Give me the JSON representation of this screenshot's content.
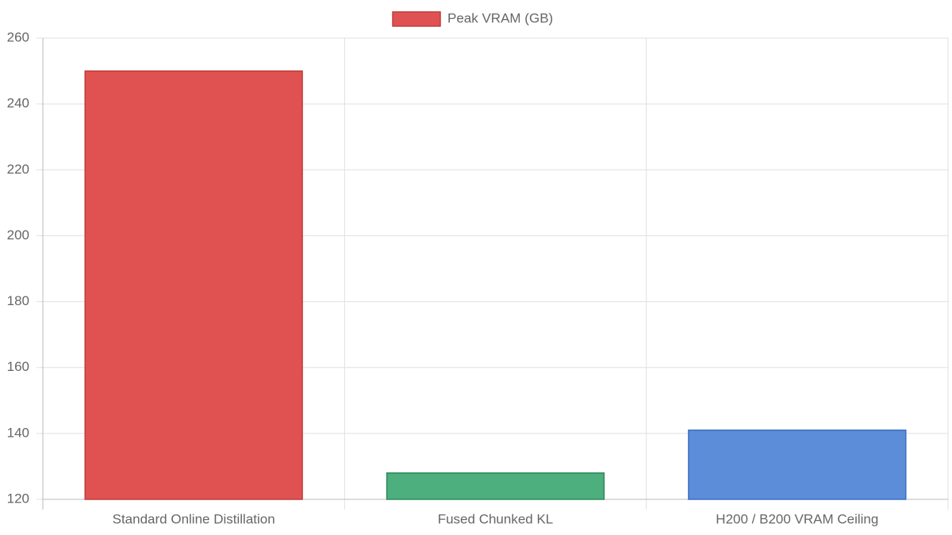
{
  "chart_data": {
    "type": "bar",
    "categories": [
      "Standard Online Distillation",
      "Fused Chunked KL",
      "H200 / B200 VRAM Ceiling"
    ],
    "series": [
      {
        "name": "Peak VRAM (GB)",
        "values": [
          250,
          128,
          141
        ],
        "colors": [
          "#e05252",
          "#4caf7d",
          "#5b8dd9"
        ],
        "border_colors": [
          "#c23b3b",
          "#2e8a5a",
          "#3a6fc2"
        ]
      }
    ],
    "ylim": [
      120,
      260
    ],
    "yticks": [
      120,
      140,
      160,
      180,
      200,
      220,
      240,
      260
    ],
    "grid": true,
    "legend": "top"
  }
}
